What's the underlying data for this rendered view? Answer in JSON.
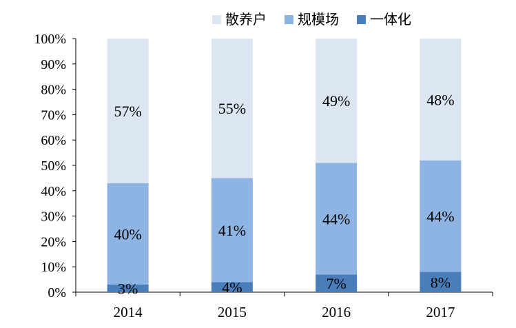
{
  "chart_data": {
    "type": "bar",
    "stacked": true,
    "categories": [
      "2014",
      "2015",
      "2016",
      "2017"
    ],
    "series": [
      {
        "name": "一体化",
        "values": [
          3,
          4,
          7,
          8
        ],
        "color": "#4a7ebb"
      },
      {
        "name": "规模场",
        "values": [
          40,
          41,
          44,
          44
        ],
        "color": "#8eb4e3"
      },
      {
        "name": "散养户",
        "values": [
          57,
          55,
          49,
          48
        ],
        "color": "#dce6f2"
      }
    ],
    "legend_order": [
      "散养户",
      "规模场",
      "一体化"
    ],
    "legend_position": "top",
    "ylim": [
      0,
      100
    ],
    "y_ticks": [
      "0%",
      "10%",
      "20%",
      "30%",
      "40%",
      "50%",
      "60%",
      "70%",
      "80%",
      "90%",
      "100%"
    ],
    "value_suffix": "%",
    "grid": false
  }
}
